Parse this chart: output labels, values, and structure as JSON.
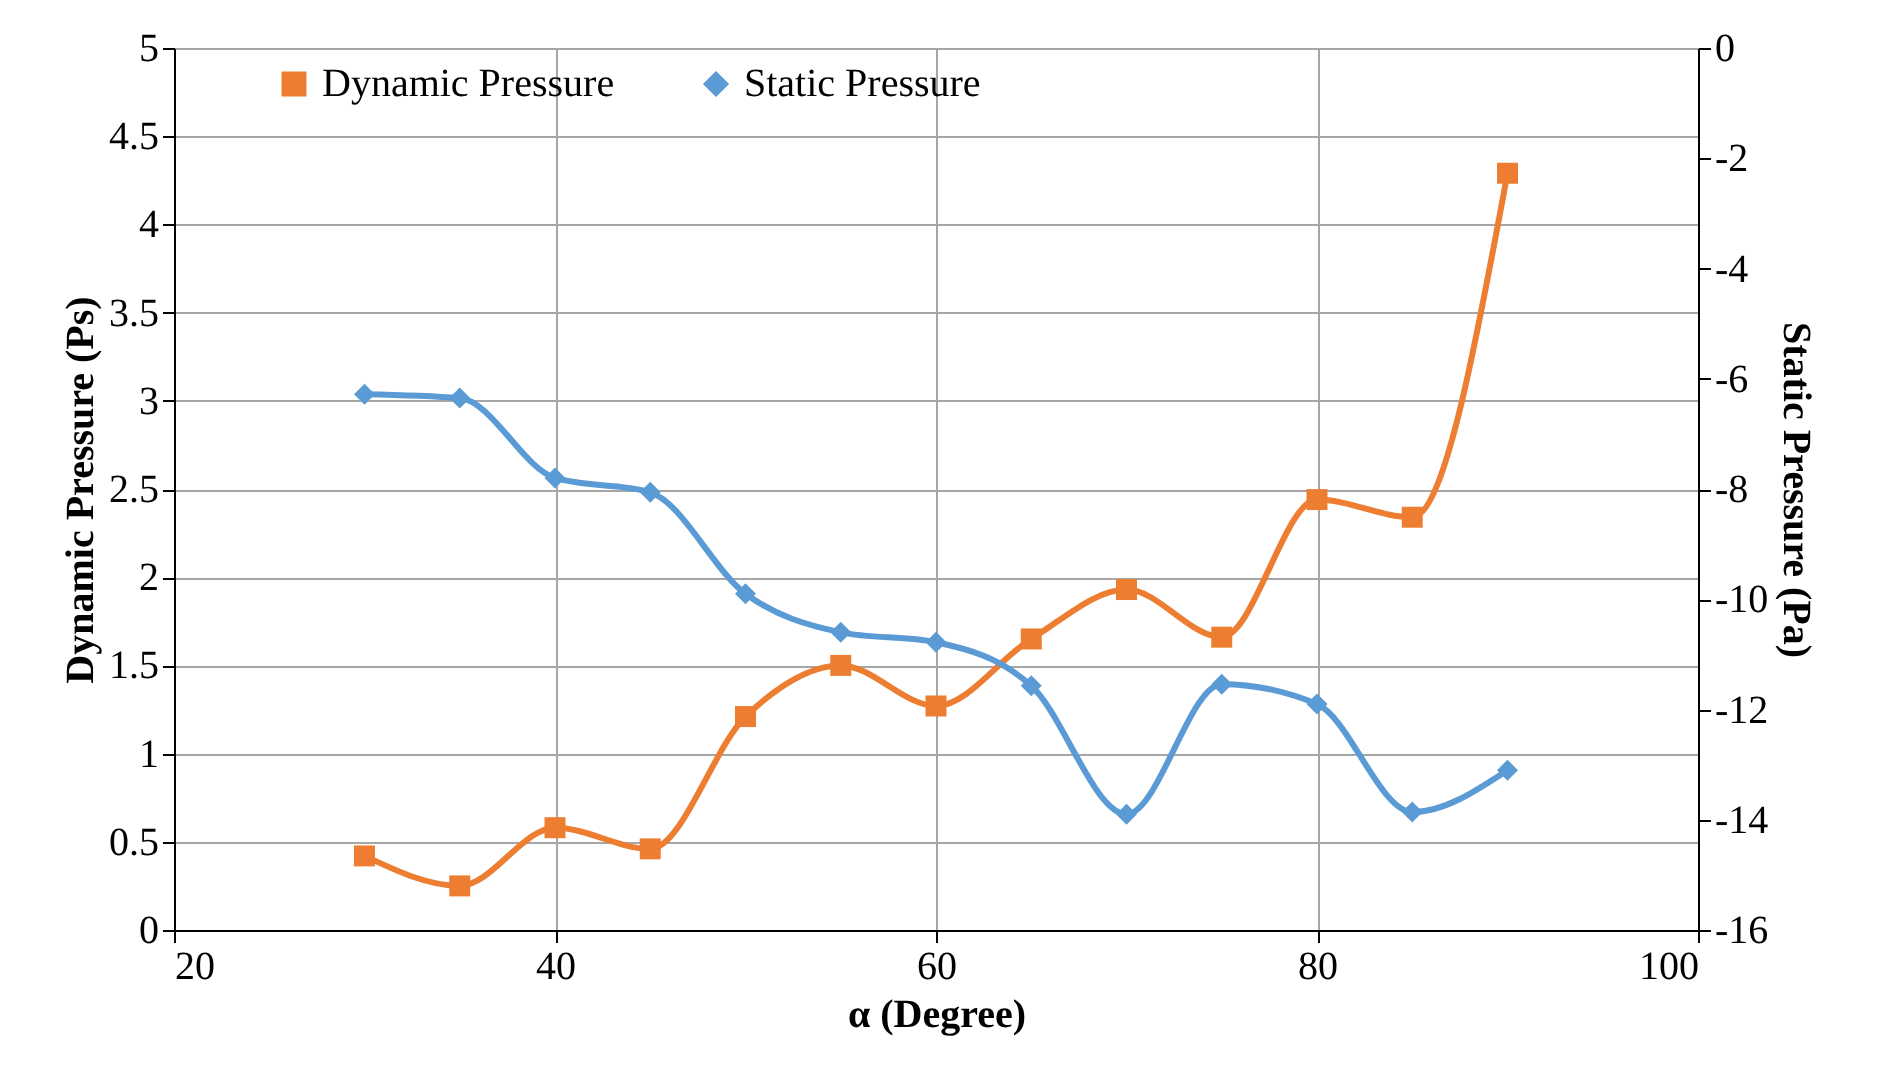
{
  "chart_data": {
    "type": "line",
    "xlabel": "α (Degree)",
    "ylabel": "Dynamic Pressure (Ps)",
    "y2label": "Static Pressure (Pa)",
    "x": [
      30,
      35,
      40,
      45,
      50,
      55,
      60,
      65,
      70,
      75,
      80,
      85,
      90
    ],
    "series": [
      {
        "name": "Dynamic Pressure",
        "color": "#ed7d31",
        "marker": "square",
        "values": [
          0.42,
          0.25,
          0.58,
          0.46,
          1.21,
          1.5,
          1.27,
          1.65,
          1.93,
          1.66,
          2.44,
          2.34,
          4.29
        ]
      },
      {
        "name": "Static Pressure",
        "color": "#5b9bd5",
        "marker": "diamond",
        "axis": "y2",
        "values": [
          -6.28,
          -6.35,
          -7.8,
          -8.06,
          -9.9,
          -10.6,
          -10.78,
          -11.57,
          -13.9,
          -11.54,
          -11.9,
          -13.86,
          -13.1
        ]
      }
    ],
    "xlim": [
      20,
      100
    ],
    "xticks": [
      20,
      40,
      60,
      80,
      100
    ],
    "ylim": [
      0,
      5
    ],
    "yticks": [
      0,
      0.5,
      1,
      1.5,
      2,
      2.5,
      3,
      3.5,
      4,
      4.5,
      5
    ],
    "y2lim": [
      -16,
      0
    ],
    "y2ticks": [
      -16,
      -14,
      -12,
      -10,
      -8,
      -6,
      -4,
      -2,
      0
    ],
    "grid": true,
    "legend": "top left"
  }
}
